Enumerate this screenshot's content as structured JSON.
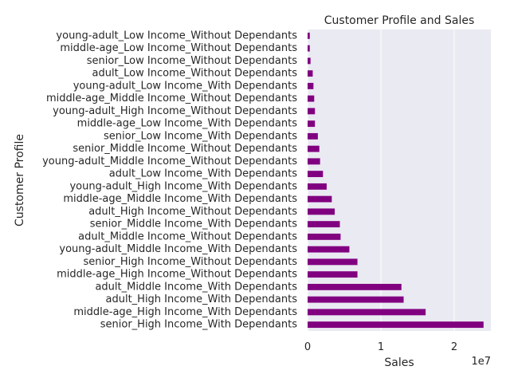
{
  "chart_data": {
    "type": "bar",
    "orientation": "horizontal",
    "title": "Customer Profile and Sales",
    "xlabel": "Sales",
    "ylabel": "Customer Profile",
    "x_scale_label": "1e7",
    "xlim": [
      0,
      2.5
    ],
    "x_ticks": [
      0,
      1,
      2
    ],
    "grid": true,
    "bar_color": "#800080",
    "background": "#eaeaf2",
    "categories": [
      "young-adult_Low Income_Without Dependants",
      "middle-age_Low Income_Without Dependants",
      "senior_Low Income_Without Dependants",
      "adult_Low Income_Without Dependants",
      "young-adult_Low Income_With Dependants",
      "middle-age_Middle Income_Without Dependants",
      "young-adult_High Income_Without Dependants",
      "middle-age_Low Income_With Dependants",
      "senior_Low Income_With Dependants",
      "senior_Middle Income_Without Dependants",
      "young-adult_Middle Income_Without Dependants",
      "adult_Low Income_With Dependants",
      "young-adult_High Income_With Dependants",
      "middle-age_Middle Income_With Dependants",
      "adult_High Income_Without Dependants",
      "senior_Middle Income_With Dependants",
      "adult_Middle Income_Without Dependants",
      "young-adult_Middle Income_With Dependants",
      "senior_High Income_Without Dependants",
      "middle-age_High Income_Without Dependants",
      "adult_Middle Income_With Dependants",
      "adult_High Income_With Dependants",
      "middle-age_High Income_With Dependants",
      "senior_High Income_With Dependants"
    ],
    "values": [
      0.03,
      0.03,
      0.04,
      0.07,
      0.08,
      0.09,
      0.1,
      0.1,
      0.14,
      0.16,
      0.17,
      0.21,
      0.26,
      0.33,
      0.37,
      0.44,
      0.45,
      0.57,
      0.68,
      0.68,
      1.28,
      1.31,
      1.61,
      2.4
    ]
  }
}
